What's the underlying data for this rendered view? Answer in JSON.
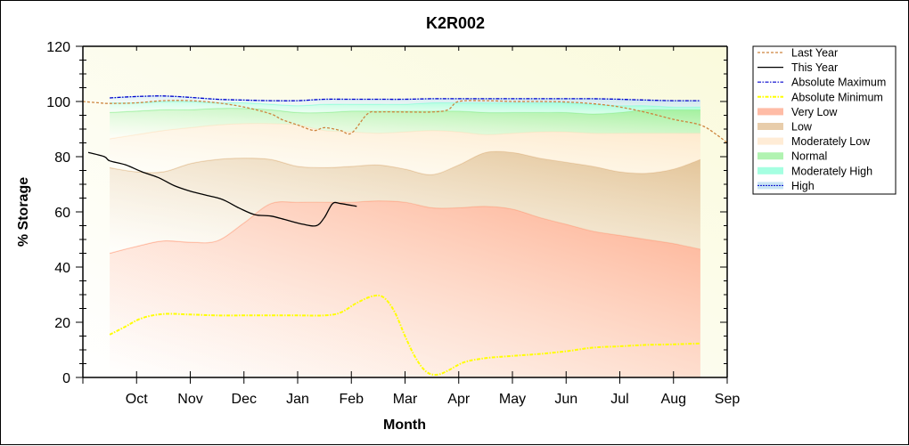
{
  "chart_data": {
    "type": "area",
    "title": "K2R002",
    "xlabel": "Month",
    "ylabel": "% Storage",
    "ylim": [
      0,
      120
    ],
    "xlim": [
      -0.5,
      11.5
    ],
    "yticks": [
      0,
      20,
      40,
      60,
      80,
      100,
      120
    ],
    "y_minor_step": 5,
    "categories": [
      "Oct",
      "Nov",
      "Dec",
      "Jan",
      "Feb",
      "Mar",
      "Apr",
      "May",
      "Jun",
      "Jul",
      "Aug",
      "Sep"
    ],
    "grid": false,
    "legend_position": "right",
    "band_x": [
      0,
      0.5,
      1,
      1.5,
      2,
      2.5,
      3,
      3.5,
      4,
      4.5,
      5,
      5.5,
      6,
      6.5,
      7,
      7.5,
      8,
      8.5,
      9,
      9.5,
      10,
      10.5,
      11
    ],
    "bands": [
      {
        "name": "Very Low",
        "color": "#ffa080",
        "lower": [
          0,
          0,
          0,
          0,
          0,
          0,
          0,
          0,
          0,
          0,
          0,
          0,
          0,
          0,
          0,
          0,
          0,
          0,
          0,
          0,
          0,
          0,
          0
        ],
        "upper": [
          45,
          47.5,
          49.5,
          49,
          49.5,
          56,
          63,
          63.5,
          63.5,
          63.5,
          64,
          63.5,
          61.5,
          61.5,
          62,
          61,
          58,
          55.5,
          53,
          51.5,
          50,
          48.5,
          46.5
        ]
      },
      {
        "name": "Low",
        "color": "#deb887",
        "lower": [
          45,
          47.5,
          49.5,
          49,
          49.5,
          56,
          63,
          63.5,
          63.5,
          63.5,
          64,
          63.5,
          61.5,
          61.5,
          62,
          61,
          58,
          55.5,
          53,
          51.5,
          50,
          48.5,
          46.5
        ],
        "upper": [
          76,
          74.5,
          74.5,
          77.5,
          79,
          79.5,
          79,
          76.5,
          76,
          76.5,
          77,
          75.5,
          73.5,
          77,
          81.5,
          81.5,
          79.5,
          78,
          76.5,
          74.5,
          74,
          75.5,
          79
        ]
      },
      {
        "name": "Moderately Low",
        "color": "#ffe4c4",
        "lower": [
          76,
          74.5,
          74.5,
          77.5,
          79,
          79.5,
          79,
          76.5,
          76,
          76.5,
          77,
          75.5,
          73.5,
          77,
          81.5,
          81.5,
          79.5,
          78,
          76.5,
          74.5,
          74,
          75.5,
          79
        ],
        "upper": [
          86.5,
          88,
          89.5,
          90.5,
          91.5,
          92,
          92,
          91.5,
          89.5,
          89,
          88.5,
          89,
          89.5,
          89,
          88,
          88.5,
          89,
          89,
          88.5,
          88.5,
          88.5,
          88.5,
          88.5
        ]
      },
      {
        "name": "Normal",
        "color": "#90ee90",
        "lower": [
          86.5,
          88,
          89.5,
          90.5,
          91.5,
          92,
          92,
          91.5,
          89.5,
          89,
          88.5,
          89,
          89.5,
          89,
          88,
          88.5,
          89,
          89,
          88.5,
          88.5,
          88.5,
          88.5,
          88.5
        ],
        "upper": [
          96,
          96.5,
          97,
          97,
          97.5,
          97.5,
          97,
          96,
          96,
          96.5,
          96.5,
          96.5,
          96.5,
          96.5,
          96,
          96,
          96,
          96,
          95.5,
          96,
          97,
          97,
          97
        ]
      },
      {
        "name": "Moderately High",
        "color": "#7fffd4",
        "lower": [
          96,
          96.5,
          97,
          97,
          97.5,
          97.5,
          97,
          96,
          96,
          96.5,
          96.5,
          96.5,
          96.5,
          96.5,
          96,
          96,
          96,
          96,
          95.5,
          96,
          97,
          97,
          97
        ],
        "upper": [
          99.5,
          99.5,
          100,
          100,
          99.5,
          99.5,
          99,
          98.5,
          99,
          99,
          99,
          99,
          99.5,
          99.5,
          99.5,
          99.5,
          99.5,
          99.5,
          99,
          98.5,
          98.5,
          98,
          98
        ]
      },
      {
        "name": "High",
        "color": "#b0d8f0",
        "lower": [
          99.5,
          99.5,
          100,
          100,
          99.5,
          99.5,
          99,
          98.5,
          99,
          99,
          99,
          99,
          99.5,
          99.5,
          99.5,
          99.5,
          99.5,
          99.5,
          99,
          98.5,
          98.5,
          98,
          98
        ],
        "upper": [
          101.3,
          101.8,
          102,
          101.5,
          100.8,
          100.5,
          100.3,
          100.3,
          100.8,
          100.8,
          100.8,
          100.8,
          101,
          101,
          101,
          101,
          101,
          101,
          101,
          100.8,
          100.5,
          100.3,
          100.3
        ]
      }
    ],
    "series": [
      {
        "name": "Last Year",
        "style": "dashed",
        "color": "#cd853f",
        "x": [
          -0.5,
          -0.2,
          0,
          0.5,
          1,
          1.5,
          2,
          2.5,
          3,
          3.2,
          3.5,
          3.8,
          4,
          4.3,
          4.5,
          4.8,
          5,
          5.5,
          6,
          6.3,
          6.5,
          7,
          7.5,
          8,
          8.5,
          9,
          9.5,
          10,
          10.5,
          11,
          11.3,
          11.5
        ],
        "y": [
          100,
          99.5,
          99.3,
          99.5,
          100.3,
          100.3,
          99.5,
          98,
          95.5,
          93.5,
          91.5,
          89.5,
          90.5,
          89.5,
          88.5,
          95.5,
          96.2,
          96.2,
          96.2,
          97,
          100,
          100.3,
          100,
          100,
          99.8,
          99.2,
          98,
          96,
          93.5,
          91.5,
          88,
          85
        ]
      },
      {
        "name": "This Year",
        "style": "solid",
        "color": "#000000",
        "x": [
          -0.4,
          -0.1,
          0,
          0.3,
          0.6,
          0.9,
          1.2,
          1.5,
          1.8,
          2.1,
          2.4,
          2.7,
          3,
          3.3,
          3.6,
          3.85,
          4,
          4.15,
          4.3,
          4.6
        ],
        "y": [
          81.5,
          80,
          78.5,
          77,
          74.5,
          72.5,
          69.5,
          67.5,
          66,
          64.5,
          61.5,
          59,
          58.5,
          57,
          55.5,
          55,
          58,
          63,
          63,
          62
        ]
      },
      {
        "name": "Absolute Maximum",
        "style": "dash-dot",
        "color": "#0000cd",
        "x": [
          0,
          0.5,
          1,
          1.5,
          2,
          2.5,
          3,
          3.5,
          4,
          4.5,
          5,
          5.5,
          6,
          6.5,
          7,
          7.5,
          8,
          8.5,
          9,
          9.5,
          10,
          10.5,
          11
        ],
        "y": [
          101.3,
          101.8,
          102,
          101.5,
          100.8,
          100.5,
          100.3,
          100.3,
          100.8,
          100.8,
          100.8,
          100.8,
          101,
          101,
          101,
          101,
          101,
          101,
          101,
          100.8,
          100.5,
          100.3,
          100.3
        ]
      },
      {
        "name": "Absolute Minimum",
        "style": "dash-dot",
        "color": "#ffff00",
        "x": [
          0,
          0.3,
          0.6,
          1,
          1.5,
          2,
          2.5,
          3,
          3.5,
          4,
          4.3,
          4.6,
          4.9,
          5.1,
          5.3,
          5.5,
          5.7,
          5.9,
          6.1,
          6.3,
          6.6,
          7,
          7.5,
          8,
          8.5,
          9,
          9.5,
          10,
          10.5,
          11
        ],
        "y": [
          15.5,
          18.5,
          21.5,
          23,
          22.8,
          22.5,
          22.5,
          22.5,
          22.5,
          22.5,
          23.5,
          27,
          29.5,
          29,
          24,
          15,
          7,
          2,
          1,
          2.5,
          5.5,
          7,
          7.8,
          8.5,
          9.5,
          10.8,
          11.3,
          11.8,
          12,
          12.3
        ]
      }
    ],
    "legend": [
      "Last Year",
      "This Year",
      "Absolute Maximum",
      "Absolute Minimum",
      "Very Low",
      "Low",
      "Moderately Low",
      "Normal",
      "Moderately High",
      "High"
    ]
  }
}
